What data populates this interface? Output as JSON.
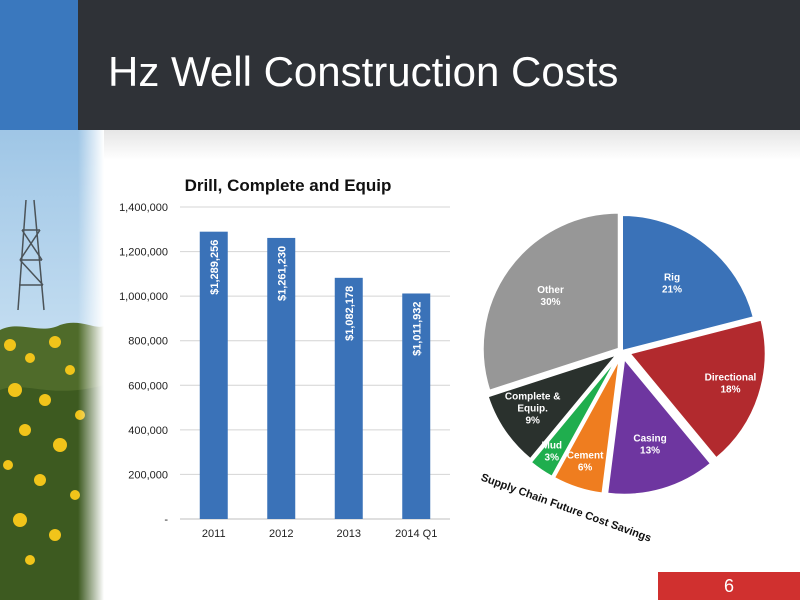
{
  "slide": {
    "title": "Hz Well Construction Costs",
    "page_number": "6"
  },
  "colors": {
    "header_bg": "#2f3237",
    "accent_blue": "#3a78be",
    "bar_color": "#3a72b8",
    "page_badge": "#d0302f"
  },
  "chart_data": [
    {
      "type": "bar",
      "title": "Drill, Complete and Equip",
      "categories": [
        "2011",
        "2012",
        "2013",
        "2014 Q1"
      ],
      "values": [
        1289256,
        1261230,
        1082178,
        1011932
      ],
      "value_labels": [
        "$1,289,256",
        "$1,261,230",
        "$1,082,178",
        "$1,011,932"
      ],
      "y_ticks": [
        {
          "value": 0,
          "label": "-"
        },
        {
          "value": 200000,
          "label": "200,000"
        },
        {
          "value": 400000,
          "label": "400,000"
        },
        {
          "value": 600000,
          "label": "600,000"
        },
        {
          "value": 800000,
          "label": "800,000"
        },
        {
          "value": 1000000,
          "label": "1,000,000"
        },
        {
          "value": 1200000,
          "label": "1,200,000"
        },
        {
          "value": 1400000,
          "label": "1,400,000"
        }
      ],
      "ylim": [
        0,
        1400000
      ],
      "grid": true
    },
    {
      "type": "pie",
      "caption": "Supply Chain Future Cost Savings",
      "slices": [
        {
          "name": "Rig",
          "pct": "21%",
          "value": 21,
          "color": "#3a72b8"
        },
        {
          "name": "Directional",
          "pct": "18%",
          "value": 18,
          "color": "#b22a2e"
        },
        {
          "name": "Casing",
          "pct": "13%",
          "value": 13,
          "color": "#6e36a0"
        },
        {
          "name": "Cement",
          "pct": "6%",
          "value": 6,
          "color": "#ef7d1f"
        },
        {
          "name": "Mud",
          "pct": "3%",
          "value": 3,
          "color": "#1fae4e"
        },
        {
          "name": "Complete & Equip.",
          "pct": "9%",
          "value": 9,
          "color": "#2a312d"
        },
        {
          "name": "Other",
          "pct": "30%",
          "value": 30,
          "color": "#979797"
        }
      ]
    }
  ]
}
